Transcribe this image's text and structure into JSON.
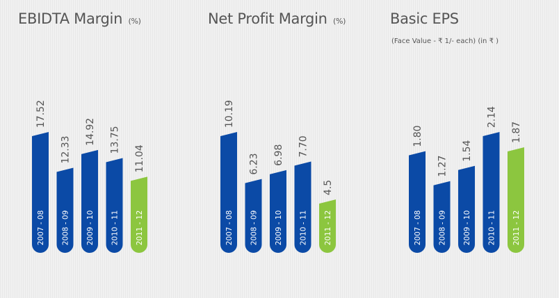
{
  "colors": {
    "background": "#f1f1f1",
    "bar_blue": "#0b4aa6",
    "bar_green": "#8cc63f",
    "bar_text": "#ffffff",
    "value_text": "#555555"
  },
  "chart_data": [
    {
      "type": "bar",
      "title": "EBIDTA Margin",
      "unit": "(%)",
      "categories": [
        "2007 - 08",
        "2008 - 09",
        "2009 - 10",
        "2010 - 11",
        "2011 - 12"
      ],
      "values": [
        17.52,
        12.33,
        14.92,
        13.75,
        11.04
      ],
      "value_labels": [
        "17.52",
        "12.33",
        "14.92",
        "13.75",
        "11.04"
      ],
      "highlight_index": 4,
      "grid": false,
      "legend": "none"
    },
    {
      "type": "bar",
      "title": "Net Profit Margin",
      "unit": "(%)",
      "categories": [
        "2007 - 08",
        "2008 - 09",
        "2009 - 10",
        "2010 - 11",
        "2011 - 12"
      ],
      "values": [
        10.19,
        6.23,
        6.98,
        7.7,
        4.5
      ],
      "value_labels": [
        "10.19",
        "6.23",
        "6.98",
        "7.70",
        "4.5"
      ],
      "highlight_index": 4,
      "grid": false,
      "legend": "none"
    },
    {
      "type": "bar",
      "title": "Basic EPS",
      "subtitle": "(Face Value - ₹ 1/- each) (in ₹ )",
      "categories": [
        "2007 - 08",
        "2008 - 09",
        "2009 - 10",
        "2010 - 11",
        "2011 - 12"
      ],
      "values": [
        1.8,
        1.27,
        1.54,
        2.14,
        1.87
      ],
      "value_labels": [
        "1.80",
        "1.27",
        "1.54",
        "2.14",
        "1.87"
      ],
      "highlight_index": 4,
      "grid": false,
      "legend": "none"
    }
  ]
}
